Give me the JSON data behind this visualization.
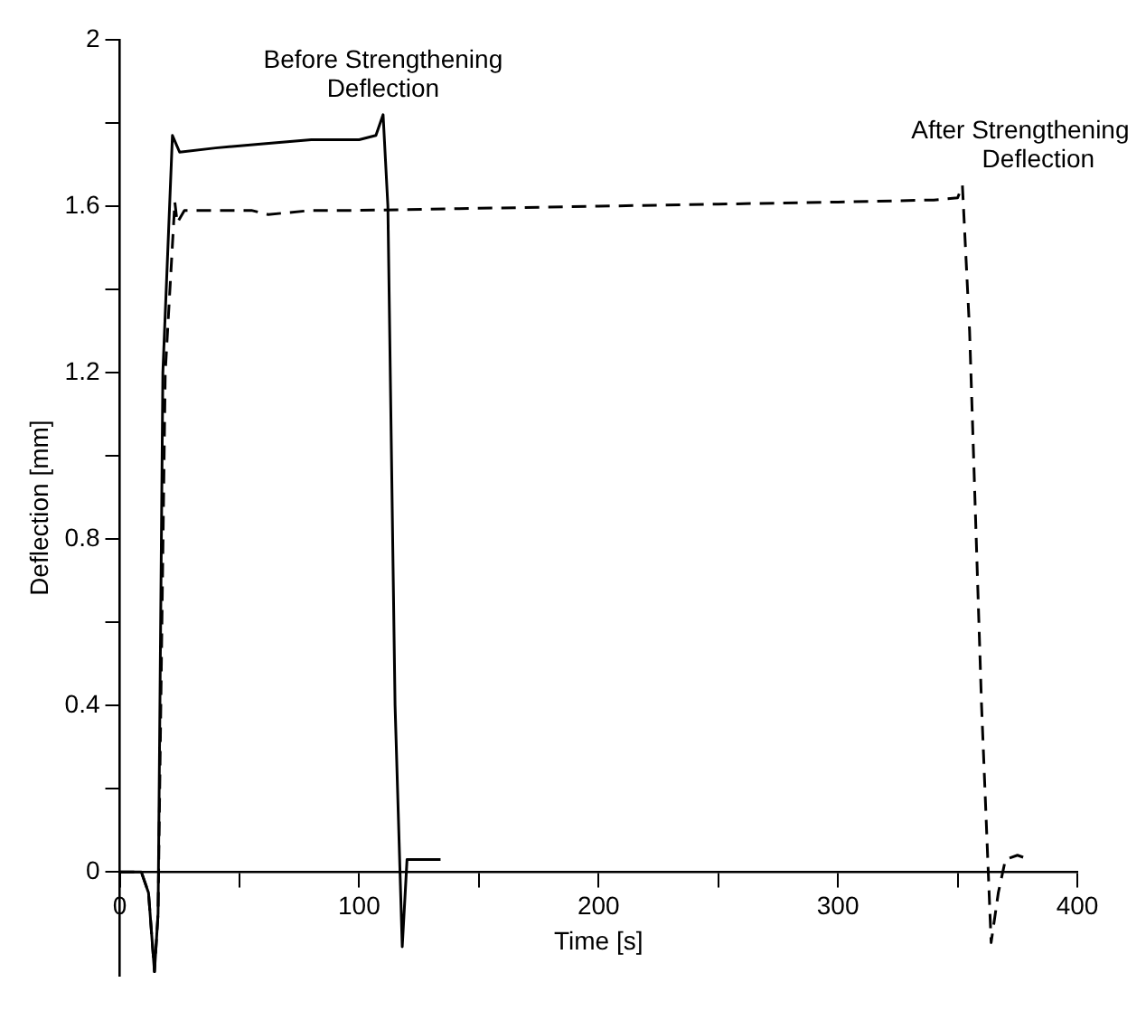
{
  "chart_data": {
    "type": "line",
    "xlabel": "Time [s]",
    "ylabel": "Deflection [mm]",
    "xlim": [
      0,
      400
    ],
    "ylim": [
      -0.25,
      2
    ],
    "xticks": [
      0,
      {
        "value": 50,
        "label": null
      },
      100,
      {
        "value": 150,
        "label": null
      },
      200,
      {
        "value": 250,
        "label": null
      },
      300,
      {
        "value": 350,
        "label": null
      },
      400
    ],
    "yticks": [
      0,
      {
        "value": 0.2,
        "label": null
      },
      0.4,
      {
        "value": 0.6,
        "label": null
      },
      0.8,
      {
        "value": 1,
        "label": null
      },
      1.2,
      {
        "value": 1.4,
        "label": null
      },
      1.6,
      {
        "value": 1.8,
        "label": null
      },
      2
    ],
    "grid": false,
    "legend": false,
    "marker": "none",
    "annotations": [
      {
        "text": "Before Strengthening\nDeflection",
        "x": 110,
        "y": 1.82
      },
      {
        "text": "After Strengthening\nDeflection",
        "x": 352,
        "y": 1.65
      }
    ],
    "series": [
      {
        "color": "#000000",
        "line_style": "solid",
        "x": [
          0,
          9,
          12,
          14.5,
          16,
          18,
          22,
          25,
          40,
          60,
          80,
          100,
          107,
          110,
          112,
          115,
          118,
          120,
          125,
          134
        ],
        "values": [
          0,
          0,
          -0.05,
          -0.24,
          -0.1,
          1.2,
          1.77,
          1.73,
          1.74,
          1.75,
          1.76,
          1.76,
          1.77,
          1.82,
          1.6,
          0.4,
          -0.18,
          0.03,
          0.03,
          0.03
        ]
      },
      {
        "color": "#000000",
        "line_style": "dashed",
        "x": [
          0,
          9,
          12,
          14.5,
          16,
          19,
          23,
          24,
          27,
          40,
          55,
          62,
          80,
          100,
          150,
          200,
          250,
          300,
          340,
          350,
          352,
          355,
          360,
          364,
          367,
          370,
          375,
          380
        ],
        "values": [
          0,
          0,
          -0.05,
          -0.24,
          -0.1,
          1.2,
          1.61,
          1.56,
          1.59,
          1.59,
          1.59,
          1.58,
          1.59,
          1.59,
          1.595,
          1.6,
          1.605,
          1.61,
          1.615,
          1.62,
          1.65,
          1.3,
          0.4,
          -0.17,
          -0.05,
          0.03,
          0.04,
          0.03
        ]
      }
    ]
  }
}
